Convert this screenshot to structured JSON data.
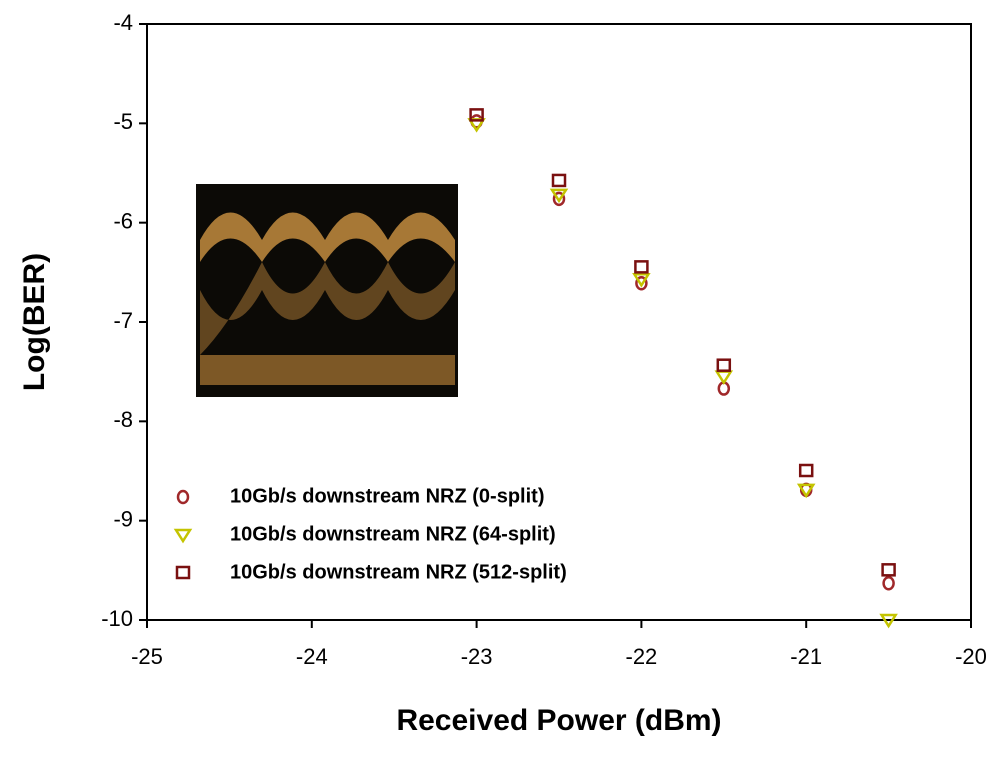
{
  "chart_data": {
    "type": "scatter",
    "x_label": "Received Power (dBm)",
    "y_label": "Log(BER)",
    "x": [
      -23,
      -22.5,
      -22,
      -21.5,
      -21,
      -20.5
    ],
    "series": [
      {
        "name": "10Gb/s downstream NRZ (0-split)",
        "color": "#a0282a",
        "marker": "circle",
        "values": [
          -4.98,
          -5.76,
          -6.61,
          -7.67,
          -8.69,
          -9.63
        ]
      },
      {
        "name": "10Gb/s downstream NRZ (64-split)",
        "color": "#c4c400",
        "marker": "triangle-down",
        "values": [
          -5.01,
          -5.72,
          -6.57,
          -7.55,
          -8.69,
          -10.0
        ]
      },
      {
        "name": "10Gb/s downstream NRZ (512-split)",
        "color": "#7a1010",
        "marker": "square",
        "values": [
          -4.92,
          -5.58,
          -6.45,
          -7.44,
          -8.5,
          -9.5
        ]
      }
    ],
    "xlim": [
      -25,
      -20
    ],
    "ylim": [
      -10,
      -4
    ],
    "xticks": [
      -25,
      -24,
      -23,
      -22,
      -21,
      -20
    ],
    "yticks": [
      -10,
      -9,
      -8,
      -7,
      -6,
      -5,
      -4
    ],
    "grid": false,
    "legend": "lower left"
  }
}
